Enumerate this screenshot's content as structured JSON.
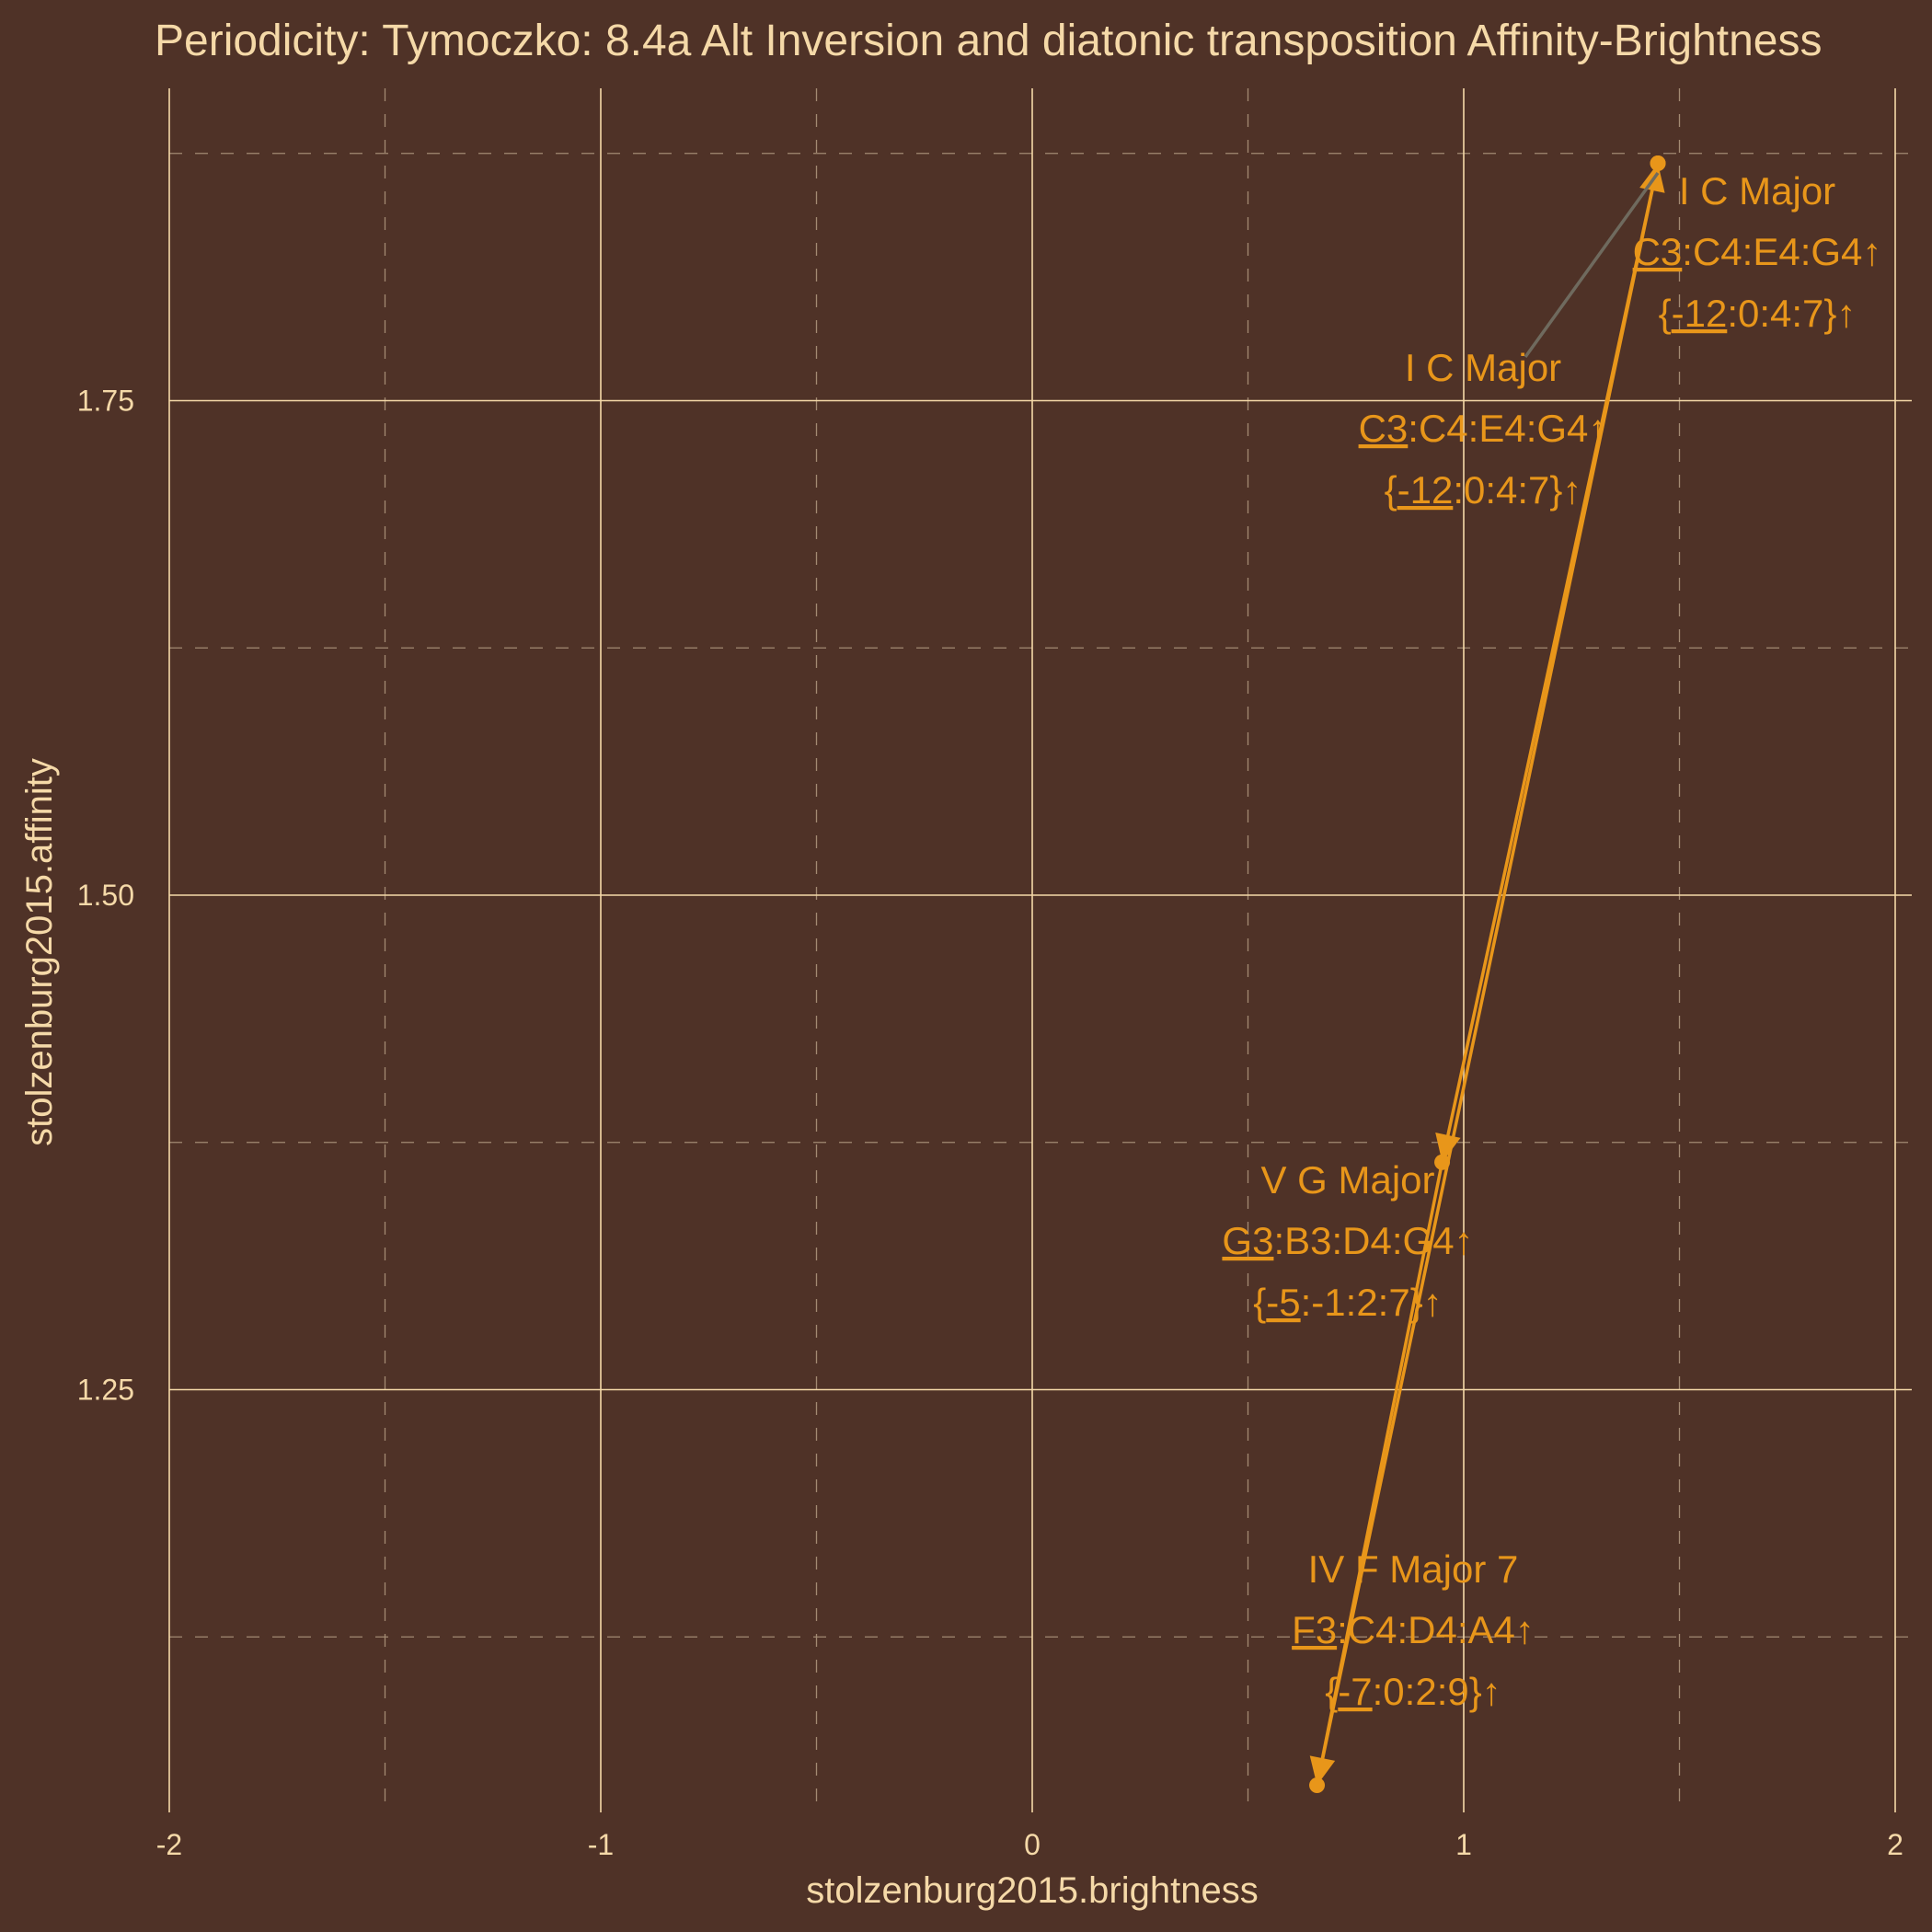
{
  "chart_data": {
    "type": "scatter",
    "title": "Periodicity: Tymoczko: 8.4a Alt Inversion and diatonic transposition Affinity-Brightness",
    "xlabel": "stolzenburg2015.brightness",
    "ylabel": "stolzenburg2015.affinity",
    "xlim": [
      -2,
      2
    ],
    "ylim": [
      1.0,
      1.9
    ],
    "x_ticks": [
      "-2",
      "-1",
      "0",
      "1",
      "2"
    ],
    "y_ticks": [
      "1.25",
      "1.50",
      "1.75"
    ],
    "grid": true,
    "connect_points": true,
    "colors": {
      "background": "#4f3227",
      "series": "#e8961a",
      "text": "#f5d9a8",
      "leader": "#6f6a5e"
    },
    "points": [
      {
        "x": 1.45,
        "y": 1.87,
        "lines": [
          [
            {
              "t": "C3",
              "u": true
            },
            {
              "t": ":C4:E4:G4↑"
            }
          ],
          [
            {
              "t": "{"
            },
            {
              "t": "-12",
              "u": true
            },
            {
              "t": ":0:4:7}↑"
            }
          ]
        ],
        "name": "I C Major"
      },
      {
        "x": 0.95,
        "y": 1.365,
        "lines": [
          [
            {
              "t": "G3",
              "u": true
            },
            {
              "t": ":B3:D4:G4↑"
            }
          ],
          [
            {
              "t": "{"
            },
            {
              "t": "-5",
              "u": true
            },
            {
              "t": ":-1:2:7}↑"
            }
          ]
        ],
        "name": "V G Major"
      },
      {
        "x": 0.66,
        "y": 1.05,
        "lines": [
          [
            {
              "t": "F3",
              "u": true
            },
            {
              "t": ":C4:D4:A4↑"
            }
          ],
          [
            {
              "t": "{"
            },
            {
              "t": "-7",
              "u": true
            },
            {
              "t": ":0:2:9}↑"
            }
          ]
        ],
        "name": "IV F Major 7"
      },
      {
        "x": 1.45,
        "y": 1.87,
        "lines": [
          [
            {
              "t": "C3",
              "u": true
            },
            {
              "t": ":C4:E4:G4↑"
            }
          ],
          [
            {
              "t": "{"
            },
            {
              "t": "-12",
              "u": true
            },
            {
              "t": ":0:4:7}↑"
            }
          ]
        ],
        "name": "I C Major"
      }
    ]
  }
}
